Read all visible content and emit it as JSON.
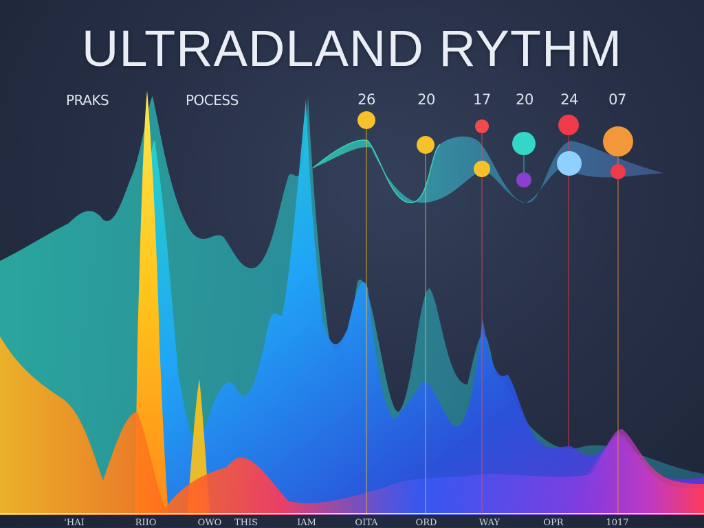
{
  "title": "ULTRADLAND RYTHM",
  "headers": {
    "left1": "PRAKS",
    "left2": "POCESS",
    "values": [
      "26",
      "20",
      "17",
      "20",
      "24",
      "07"
    ]
  },
  "chart_data": {
    "type": "area",
    "x_tick_labels": [
      "",
      "'HAI",
      "RIIO",
      "OWO",
      "THIS",
      "IAM",
      "OITA",
      "ORD",
      "WAY",
      "OPR",
      "1017"
    ],
    "series": [
      {
        "color": "#2bb3a8",
        "values": [
          52,
          60,
          68,
          56,
          55,
          49,
          62,
          38,
          42,
          38,
          30
        ]
      },
      {
        "color": "#ffd21a",
        "values": [
          0,
          0,
          100,
          22,
          0,
          0,
          0,
          0,
          0,
          0,
          0
        ]
      },
      {
        "color": "#1fa6ff",
        "values": [
          0,
          0,
          90,
          55,
          60,
          95,
          58,
          40,
          45,
          28,
          20
        ]
      },
      {
        "color": "#ff5a3c",
        "values": [
          25,
          18,
          8,
          0,
          0,
          0,
          0,
          0,
          0,
          0,
          20
        ]
      }
    ],
    "markers": [
      {
        "label": "26",
        "color": "#f6c22b"
      },
      {
        "label": "20",
        "color": "#f6c22b"
      },
      {
        "label": "17",
        "color": "#f04a4a"
      },
      {
        "label": "17",
        "color": "#f6c22b"
      },
      {
        "label": "20",
        "color": "#33d6c8"
      },
      {
        "label": "20",
        "color": "#8a3fcf"
      },
      {
        "label": "24",
        "color": "#ef3a4a"
      },
      {
        "label": "24",
        "color": "#8fd0ff"
      },
      {
        "label": "07",
        "color": "#f2973a"
      },
      {
        "label": "07",
        "color": "#ef3a4a"
      }
    ],
    "grid": false,
    "legend": "none"
  }
}
